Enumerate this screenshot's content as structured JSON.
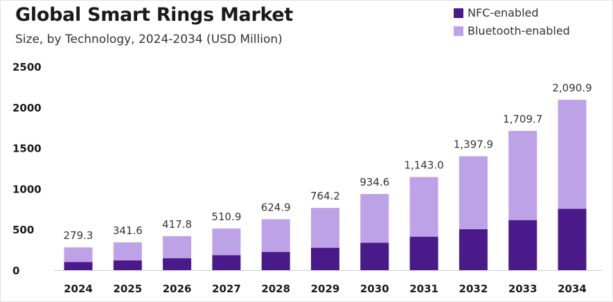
{
  "title": "Global Smart Rings Market",
  "subtitle": "Size, by Technology, 2024-2034 (USD Million)",
  "legend": [
    {
      "label": "NFC-enabled",
      "color": "#4a1a8a"
    },
    {
      "label": "Bluetooth-enabled",
      "color": "#bea2e8"
    }
  ],
  "chart_data": {
    "type": "bar",
    "stacked": true,
    "categories": [
      "2024",
      "2025",
      "2026",
      "2027",
      "2028",
      "2029",
      "2030",
      "2031",
      "2032",
      "2033",
      "2034"
    ],
    "series": [
      {
        "name": "NFC-enabled",
        "color": "#4a1a8a",
        "values": [
          100,
          120,
          147,
          183,
          224,
          275,
          336,
          411,
          503,
          615,
          753
        ]
      },
      {
        "name": "Bluetooth-enabled",
        "color": "#bea2e8",
        "values": [
          179.3,
          221.6,
          270.8,
          327.9,
          400.9,
          489.2,
          598.6,
          732.0,
          894.9,
          1094.7,
          1337.9
        ]
      }
    ],
    "totals": [
      279.3,
      341.6,
      417.8,
      510.9,
      624.9,
      764.2,
      934.6,
      1143.0,
      1397.9,
      1709.7,
      2090.9
    ],
    "total_labels": [
      "279.3",
      "341.6",
      "417.8",
      "510.9",
      "624.9",
      "764.2",
      "934.6",
      "1,143.0",
      "1,397.9",
      "1,709.7",
      "2,090.9"
    ],
    "yticks": [
      0,
      500,
      1000,
      1500,
      2000,
      2500
    ],
    "ylim": [
      0,
      2500
    ],
    "grid": false,
    "legend_position": "top-right"
  }
}
